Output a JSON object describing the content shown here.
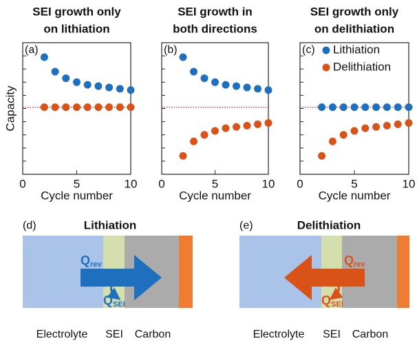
{
  "chart_data": [
    {
      "type": "scatter",
      "title": [
        "SEI growth only",
        "on lithiation"
      ],
      "panel": "(a)",
      "xlabel": "Cycle number",
      "ylabel": "Capacity",
      "xlim": [
        0,
        10
      ],
      "xticks": [
        0,
        5,
        10
      ],
      "ylim": [
        0,
        1
      ],
      "reference_line": 0.51,
      "reference_color": "#d62020",
      "series": [
        {
          "name": "Lithiation",
          "color": "#1f6fbf",
          "x": [
            2,
            3,
            4,
            5,
            6,
            7,
            8,
            9,
            10
          ],
          "values": [
            0.89,
            0.78,
            0.73,
            0.7,
            0.68,
            0.67,
            0.66,
            0.65,
            0.64
          ]
        },
        {
          "name": "Delithiation",
          "color": "#d95319",
          "x": [
            2,
            3,
            4,
            5,
            6,
            7,
            8,
            9,
            10
          ],
          "values": [
            0.51,
            0.51,
            0.51,
            0.51,
            0.51,
            0.51,
            0.51,
            0.51,
            0.51
          ]
        }
      ]
    },
    {
      "type": "scatter",
      "title": [
        "SEI growth in",
        "both directions"
      ],
      "panel": "(b)",
      "xlabel": "Cycle number",
      "xlim": [
        0,
        10
      ],
      "xticks": [
        0,
        5,
        10
      ],
      "ylim": [
        0,
        1
      ],
      "reference_line": 0.51,
      "reference_color": "#d62020",
      "series": [
        {
          "name": "Lithiation",
          "color": "#1f6fbf",
          "x": [
            2,
            3,
            4,
            5,
            6,
            7,
            8,
            9,
            10
          ],
          "values": [
            0.89,
            0.78,
            0.73,
            0.7,
            0.68,
            0.67,
            0.66,
            0.65,
            0.64
          ]
        },
        {
          "name": "Delithiation",
          "color": "#d95319",
          "x": [
            2,
            3,
            4,
            5,
            6,
            7,
            8,
            9,
            10
          ],
          "values": [
            0.14,
            0.25,
            0.3,
            0.33,
            0.35,
            0.36,
            0.37,
            0.38,
            0.39
          ]
        }
      ]
    },
    {
      "type": "scatter",
      "title": [
        "SEI growth only",
        "on delithiation"
      ],
      "panel": "(c)",
      "xlabel": "Cycle number",
      "legend": "upper right",
      "xlim": [
        0,
        10
      ],
      "xticks": [
        0,
        5,
        10
      ],
      "ylim": [
        0,
        1
      ],
      "reference_line": 0.51,
      "reference_color": "#d62020",
      "series": [
        {
          "name": "Lithiation",
          "color": "#1f6fbf",
          "x": [
            2,
            3,
            4,
            5,
            6,
            7,
            8,
            9,
            10
          ],
          "values": [
            0.51,
            0.51,
            0.51,
            0.51,
            0.51,
            0.51,
            0.51,
            0.51,
            0.51
          ]
        },
        {
          "name": "Delithiation",
          "color": "#d95319",
          "x": [
            2,
            3,
            4,
            5,
            6,
            7,
            8,
            9,
            10
          ],
          "values": [
            0.14,
            0.25,
            0.3,
            0.33,
            0.35,
            0.36,
            0.37,
            0.38,
            0.39
          ]
        }
      ]
    }
  ],
  "diagrams": [
    {
      "panel": "(d)",
      "title": "Lithiation",
      "regions": [
        "Electrolyte",
        "SEI",
        "Carbon"
      ],
      "q_main": "Q",
      "q_main_sub": "rev",
      "q_side": "Q",
      "q_side_sub": "SEI"
    },
    {
      "panel": "(e)",
      "title": "Delithiation",
      "regions": [
        "Electrolyte",
        "SEI",
        "Carbon"
      ],
      "q_main": "Q",
      "q_main_sub": "rev",
      "q_side": "Q",
      "q_side_sub": "SEI"
    }
  ]
}
